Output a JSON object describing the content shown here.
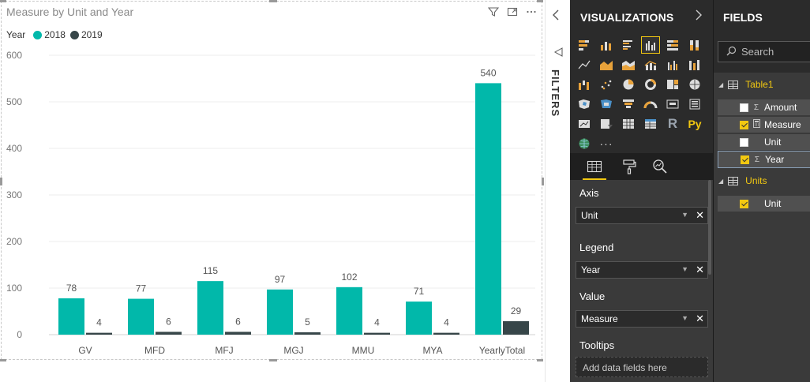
{
  "chart": {
    "title": "Measure by Unit and Year",
    "legend_title": "Year"
  },
  "chart_data": {
    "type": "bar",
    "title": "Measure by Unit and Year",
    "xlabel": "",
    "ylabel": "",
    "categories": [
      "GV",
      "MFD",
      "MFJ",
      "MGJ",
      "MMU",
      "MYA",
      "YearlyTotal"
    ],
    "series": [
      {
        "name": "2018",
        "color": "#01b8aa",
        "values": [
          78,
          77,
          115,
          97,
          102,
          71,
          540
        ]
      },
      {
        "name": "2019",
        "color": "#374649",
        "values": [
          4,
          6,
          6,
          5,
          4,
          4,
          29
        ]
      }
    ],
    "ylim": [
      0,
      600
    ],
    "yticks": [
      0,
      100,
      200,
      300,
      400,
      500,
      600
    ],
    "grid": true,
    "legend_position": "top-left",
    "data_labels": true
  },
  "filters": {
    "collapse_icon": "chevron-left-icon",
    "label": "FILTERS"
  },
  "visualizations": {
    "title": "VISUALIZATIONS",
    "selected_icon": "clustered-column-chart-icon",
    "r_label": "R",
    "py_label": "Py",
    "more_label": "···",
    "wells": {
      "axis_label": "Axis",
      "axis_value": "Unit",
      "legend_label": "Legend",
      "legend_value": "Year",
      "value_label": "Value",
      "value_value": "Measure",
      "tooltips_label": "Tooltips",
      "tooltips_placeholder": "Add data fields here"
    }
  },
  "fields": {
    "title": "FIELDS",
    "search_placeholder": "Search",
    "tables": [
      {
        "name": "Table1",
        "fields": [
          {
            "name": "Amount",
            "checked": false,
            "type": "Σ"
          },
          {
            "name": "Measure",
            "checked": true,
            "type": "calc"
          },
          {
            "name": "Unit",
            "checked": false,
            "type": ""
          },
          {
            "name": "Year",
            "checked": true,
            "type": "Σ"
          }
        ]
      },
      {
        "name": "Units",
        "fields": [
          {
            "name": "Unit",
            "checked": true,
            "type": ""
          }
        ]
      }
    ]
  }
}
